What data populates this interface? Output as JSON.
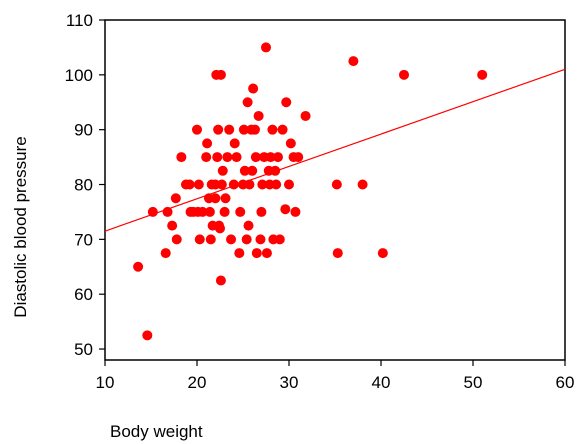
{
  "chart_data": {
    "type": "scatter",
    "title": "",
    "xlabel": "Body weight",
    "ylabel": "Diastolic blood pressure",
    "xlim": [
      10,
      60
    ],
    "ylim": [
      48,
      110
    ],
    "x_ticks": [
      "10",
      "20",
      "30",
      "40",
      "50",
      "60"
    ],
    "y_ticks": [
      "50",
      "60",
      "70",
      "80",
      "90",
      "100",
      "110"
    ],
    "grid": false,
    "legend": "none",
    "point_color": "#ff0000",
    "line_color": "#ff0000",
    "trend_line": {
      "x": [
        10,
        60
      ],
      "y": [
        71.5,
        101
      ]
    },
    "series": [
      {
        "points": [
          [
            13.6,
            65
          ],
          [
            14.6,
            52.5
          ],
          [
            15.2,
            75
          ],
          [
            16.6,
            67.5
          ],
          [
            16.8,
            75
          ],
          [
            17.3,
            72.5
          ],
          [
            17.7,
            77.5
          ],
          [
            17.8,
            70
          ],
          [
            18.3,
            85
          ],
          [
            18.8,
            80
          ],
          [
            19.2,
            80
          ],
          [
            19.3,
            75
          ],
          [
            19.6,
            75
          ],
          [
            20.0,
            90
          ],
          [
            20.1,
            75
          ],
          [
            20.2,
            80
          ],
          [
            20.3,
            70
          ],
          [
            20.6,
            75
          ],
          [
            21.0,
            85
          ],
          [
            21.1,
            87.5
          ],
          [
            21.3,
            77.5
          ],
          [
            21.4,
            75
          ],
          [
            21.5,
            70
          ],
          [
            21.6,
            80
          ],
          [
            21.7,
            72.5
          ],
          [
            22.0,
            80
          ],
          [
            22.0,
            77.5
          ],
          [
            22.1,
            100
          ],
          [
            22.2,
            85
          ],
          [
            22.3,
            90
          ],
          [
            22.4,
            72.5
          ],
          [
            22.5,
            72
          ],
          [
            22.6,
            100
          ],
          [
            22.6,
            62.5
          ],
          [
            22.7,
            80
          ],
          [
            22.8,
            82.5
          ],
          [
            23.0,
            75
          ],
          [
            23.1,
            77.5
          ],
          [
            23.3,
            85
          ],
          [
            23.5,
            90
          ],
          [
            23.7,
            70
          ],
          [
            24.0,
            80
          ],
          [
            24.1,
            87.5
          ],
          [
            24.3,
            85
          ],
          [
            24.6,
            67.5
          ],
          [
            24.7,
            75
          ],
          [
            25.0,
            80
          ],
          [
            25.1,
            90
          ],
          [
            25.2,
            82.5
          ],
          [
            25.4,
            70
          ],
          [
            25.5,
            95
          ],
          [
            25.6,
            72.5
          ],
          [
            25.7,
            80
          ],
          [
            25.9,
            90
          ],
          [
            26.0,
            82.5
          ],
          [
            26.1,
            97.5
          ],
          [
            26.3,
            90
          ],
          [
            26.4,
            85
          ],
          [
            26.5,
            67.5
          ],
          [
            26.7,
            92.5
          ],
          [
            26.9,
            70
          ],
          [
            27.0,
            75
          ],
          [
            27.1,
            80
          ],
          [
            27.3,
            85
          ],
          [
            27.5,
            105
          ],
          [
            27.6,
            67.5
          ],
          [
            27.8,
            82.5
          ],
          [
            27.9,
            80
          ],
          [
            28.0,
            85
          ],
          [
            28.2,
            90
          ],
          [
            28.3,
            70
          ],
          [
            28.5,
            82.5
          ],
          [
            28.6,
            80
          ],
          [
            28.8,
            85
          ],
          [
            29.0,
            70
          ],
          [
            29.3,
            90
          ],
          [
            29.6,
            75.5
          ],
          [
            29.7,
            95
          ],
          [
            30.0,
            80
          ],
          [
            30.2,
            87.5
          ],
          [
            30.5,
            85
          ],
          [
            30.7,
            75
          ],
          [
            31.0,
            85
          ],
          [
            31.8,
            92.5
          ],
          [
            35.2,
            80
          ],
          [
            35.3,
            67.5
          ],
          [
            37.0,
            102.5
          ],
          [
            38.0,
            80
          ],
          [
            40.2,
            67.5
          ],
          [
            42.5,
            100
          ],
          [
            51.0,
            100
          ]
        ]
      }
    ]
  }
}
